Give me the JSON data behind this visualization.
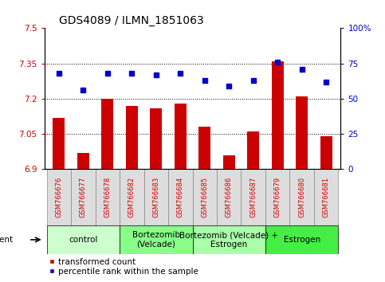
{
  "title": "GDS4089 / ILMN_1851063",
  "samples": [
    "GSM766676",
    "GSM766677",
    "GSM766678",
    "GSM766682",
    "GSM766683",
    "GSM766684",
    "GSM766685",
    "GSM766686",
    "GSM766687",
    "GSM766679",
    "GSM766680",
    "GSM766681"
  ],
  "transformed_count": [
    7.12,
    6.97,
    7.2,
    7.17,
    7.16,
    7.18,
    7.08,
    6.96,
    7.06,
    7.36,
    7.21,
    7.04
  ],
  "percentile_rank": [
    68,
    56,
    68,
    68,
    67,
    68,
    63,
    59,
    63,
    76,
    71,
    62
  ],
  "ylim_left": [
    6.9,
    7.5
  ],
  "ylim_right": [
    0,
    100
  ],
  "yticks_left": [
    6.9,
    7.05,
    7.2,
    7.35,
    7.5
  ],
  "yticks_right": [
    0,
    25,
    50,
    75,
    100
  ],
  "ytick_labels_left": [
    "6.9",
    "7.05",
    "7.2",
    "7.35",
    "7.5"
  ],
  "ytick_labels_right": [
    "0",
    "25",
    "50",
    "75",
    "100%"
  ],
  "hlines": [
    7.05,
    7.2,
    7.35
  ],
  "bar_color": "#cc0000",
  "dot_color": "#0000cc",
  "bar_base": 6.9,
  "groups": [
    {
      "label": "control",
      "start": 0,
      "end": 3,
      "color": "#ccffcc"
    },
    {
      "label": "Bortezomib\n(Velcade)",
      "start": 3,
      "end": 6,
      "color": "#88ff88"
    },
    {
      "label": "Bortezomib (Velcade) +\nEstrogen",
      "start": 6,
      "end": 9,
      "color": "#aaffaa"
    },
    {
      "label": "Estrogen",
      "start": 9,
      "end": 12,
      "color": "#44ee44"
    }
  ],
  "agent_label": "agent",
  "legend_bar_label": "transformed count",
  "legend_dot_label": "percentile rank within the sample",
  "title_fontsize": 10,
  "tick_fontsize": 7.5,
  "group_fontsize": 7.5,
  "legend_fontsize": 7.5,
  "sample_fontsize": 6,
  "bar_width": 0.5,
  "xlim": [
    -0.6,
    11.6
  ]
}
